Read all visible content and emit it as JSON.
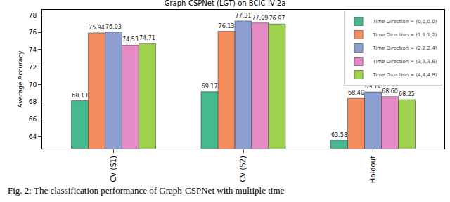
{
  "chart_data": {
    "type": "bar",
    "title": "Graph-CSPNet (LGT) on BCIC-IV-2a",
    "y_label": "Average Accuracy",
    "categories": [
      "CV (S1)",
      "CV (S2)",
      "Holdout"
    ],
    "series": [
      {
        "name": "Time Direction = (0,0,0,0)",
        "color": "#46b98e",
        "values": [
          68.13,
          69.17,
          63.58
        ],
        "value_labels": [
          "68.13",
          "69.17",
          "63.58"
        ]
      },
      {
        "name": "Time Direction = (1,1,1,2)",
        "color": "#f58d5e",
        "values": [
          75.94,
          76.13,
          68.4
        ],
        "value_labels": [
          "75.94",
          "76.13",
          "68.40"
        ]
      },
      {
        "name": "Time Direction = (2,2,2,4)",
        "color": "#8c9fd0",
        "values": [
          76.03,
          77.31,
          69.14
        ],
        "value_labels": [
          "76.03",
          "77.31",
          "69.14"
        ]
      },
      {
        "name": "Time Direction = (3,3,3,6)",
        "color": "#e58ac4",
        "values": [
          74.53,
          77.09,
          68.6
        ],
        "value_labels": [
          "74.53",
          "77.09",
          "68.60"
        ]
      },
      {
        "name": "Time Direction = (4,4,4,8)",
        "color": "#9fd24e",
        "values": [
          74.71,
          76.97,
          68.25
        ],
        "value_labels": [
          "74.71",
          "76.97",
          "68.25"
        ]
      }
    ],
    "ylim": [
      62.6,
      78.6
    ],
    "yticks": [
      64,
      66,
      68,
      70,
      72,
      74,
      76,
      78
    ],
    "grid": false,
    "legend": "upper right",
    "data_labels": true,
    "annotations": [
      "Fig. 2: The classification performance of Graph-CSPNet with multiple time"
    ]
  }
}
